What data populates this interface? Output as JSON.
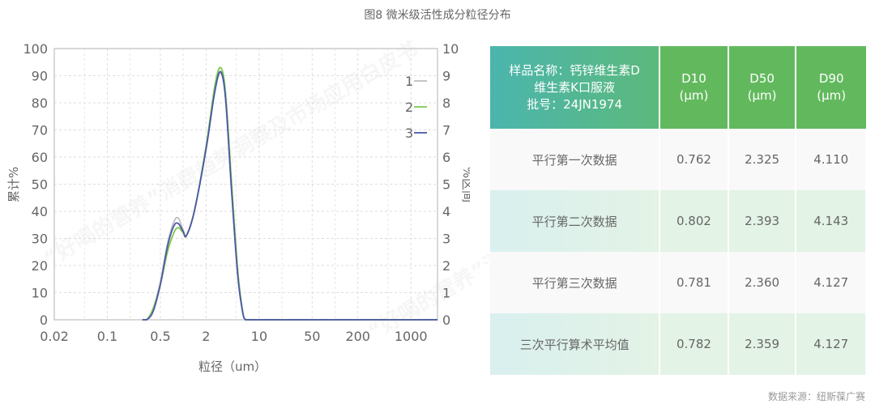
{
  "title": "图8 微米级活性成分粒径分布",
  "watermark": "“好喝的营养”消费趋势洞察及市场应用白皮书",
  "source": "数据来源：纽斯葆广赛",
  "chart_data": {
    "type": "line",
    "xlabel": "粒径（um）",
    "ylabel": "累计%",
    "y2label": "%区间",
    "xscale": "log",
    "xlim": [
      0.02,
      2240
    ],
    "ylim": [
      0,
      100
    ],
    "y2lim": [
      0,
      10
    ],
    "xticks": [
      0.02,
      0.1,
      0.5,
      2,
      10,
      50,
      200,
      1000
    ],
    "xtick_labels": [
      "0.02",
      "0.1",
      "0.5",
      "2",
      "10",
      "50",
      "200",
      "1000"
    ],
    "yticks": [
      0,
      10,
      20,
      30,
      40,
      50,
      60,
      70,
      80,
      90,
      100
    ],
    "y2ticks": [
      0,
      1,
      2,
      3,
      4,
      5,
      6,
      7,
      8,
      9,
      10
    ],
    "grid": true,
    "legend_placement": "top-right",
    "series": [
      {
        "name": "1",
        "color": "#bdbdbd",
        "x": [
          0.29,
          0.33,
          0.4,
          0.5,
          0.62,
          0.75,
          0.86,
          1.0,
          1.1,
          1.4,
          2.0,
          2.6,
          3.1,
          3.6,
          4.3,
          5.2,
          6.0,
          6.6,
          8,
          20,
          100,
          2240
        ],
        "y": [
          0,
          0,
          4,
          14,
          28,
          36,
          37.5,
          33,
          31,
          40,
          63,
          84,
          91,
          82,
          50,
          18,
          4,
          0,
          0,
          0,
          0,
          0
        ]
      },
      {
        "name": "2",
        "color": "#7cc94e",
        "x": [
          0.29,
          0.33,
          0.4,
          0.5,
          0.62,
          0.75,
          0.86,
          1.0,
          1.1,
          1.4,
          2.0,
          2.6,
          3.1,
          3.6,
          4.3,
          5.2,
          6.0,
          6.6,
          8,
          20,
          100,
          2240
        ],
        "y": [
          0,
          0,
          4,
          13,
          25,
          32,
          34,
          32,
          31,
          40,
          64,
          86,
          93,
          84,
          52,
          19,
          4,
          0,
          0,
          0,
          0,
          0
        ]
      },
      {
        "name": "3",
        "color": "#4b57a8",
        "x": [
          0.29,
          0.33,
          0.4,
          0.5,
          0.62,
          0.75,
          0.86,
          1.0,
          1.1,
          1.4,
          2.0,
          2.6,
          3.1,
          3.6,
          4.3,
          5.2,
          6.0,
          6.6,
          8,
          20,
          100,
          2240
        ],
        "y": [
          0,
          0,
          3,
          13,
          27,
          34.5,
          35.5,
          32.5,
          31,
          40,
          63,
          84,
          91.5,
          82,
          49,
          17,
          3.5,
          0,
          0,
          0,
          0,
          0
        ]
      }
    ]
  },
  "table": {
    "header": {
      "sample_line1": "样品名称：钙锌维生素D",
      "sample_line2": "维生素K口服液",
      "sample_line3": "批号：24JN1974",
      "cols": [
        {
          "name": "D10",
          "unit": "(μm)"
        },
        {
          "name": "D50",
          "unit": "(μm)"
        },
        {
          "name": "D90",
          "unit": "(μm)"
        }
      ]
    },
    "rows": [
      {
        "label": "平行第一次数据",
        "d10": "0.762",
        "d50": "2.325",
        "d90": "4.110"
      },
      {
        "label": "平行第二次数据",
        "d10": "0.802",
        "d50": "2.393",
        "d90": "4.143"
      },
      {
        "label": "平行第三次数据",
        "d10": "0.781",
        "d50": "2.360",
        "d90": "4.127"
      },
      {
        "label": "三次平行算术平均值",
        "d10": "0.782",
        "d50": "2.359",
        "d90": "4.127"
      }
    ]
  }
}
